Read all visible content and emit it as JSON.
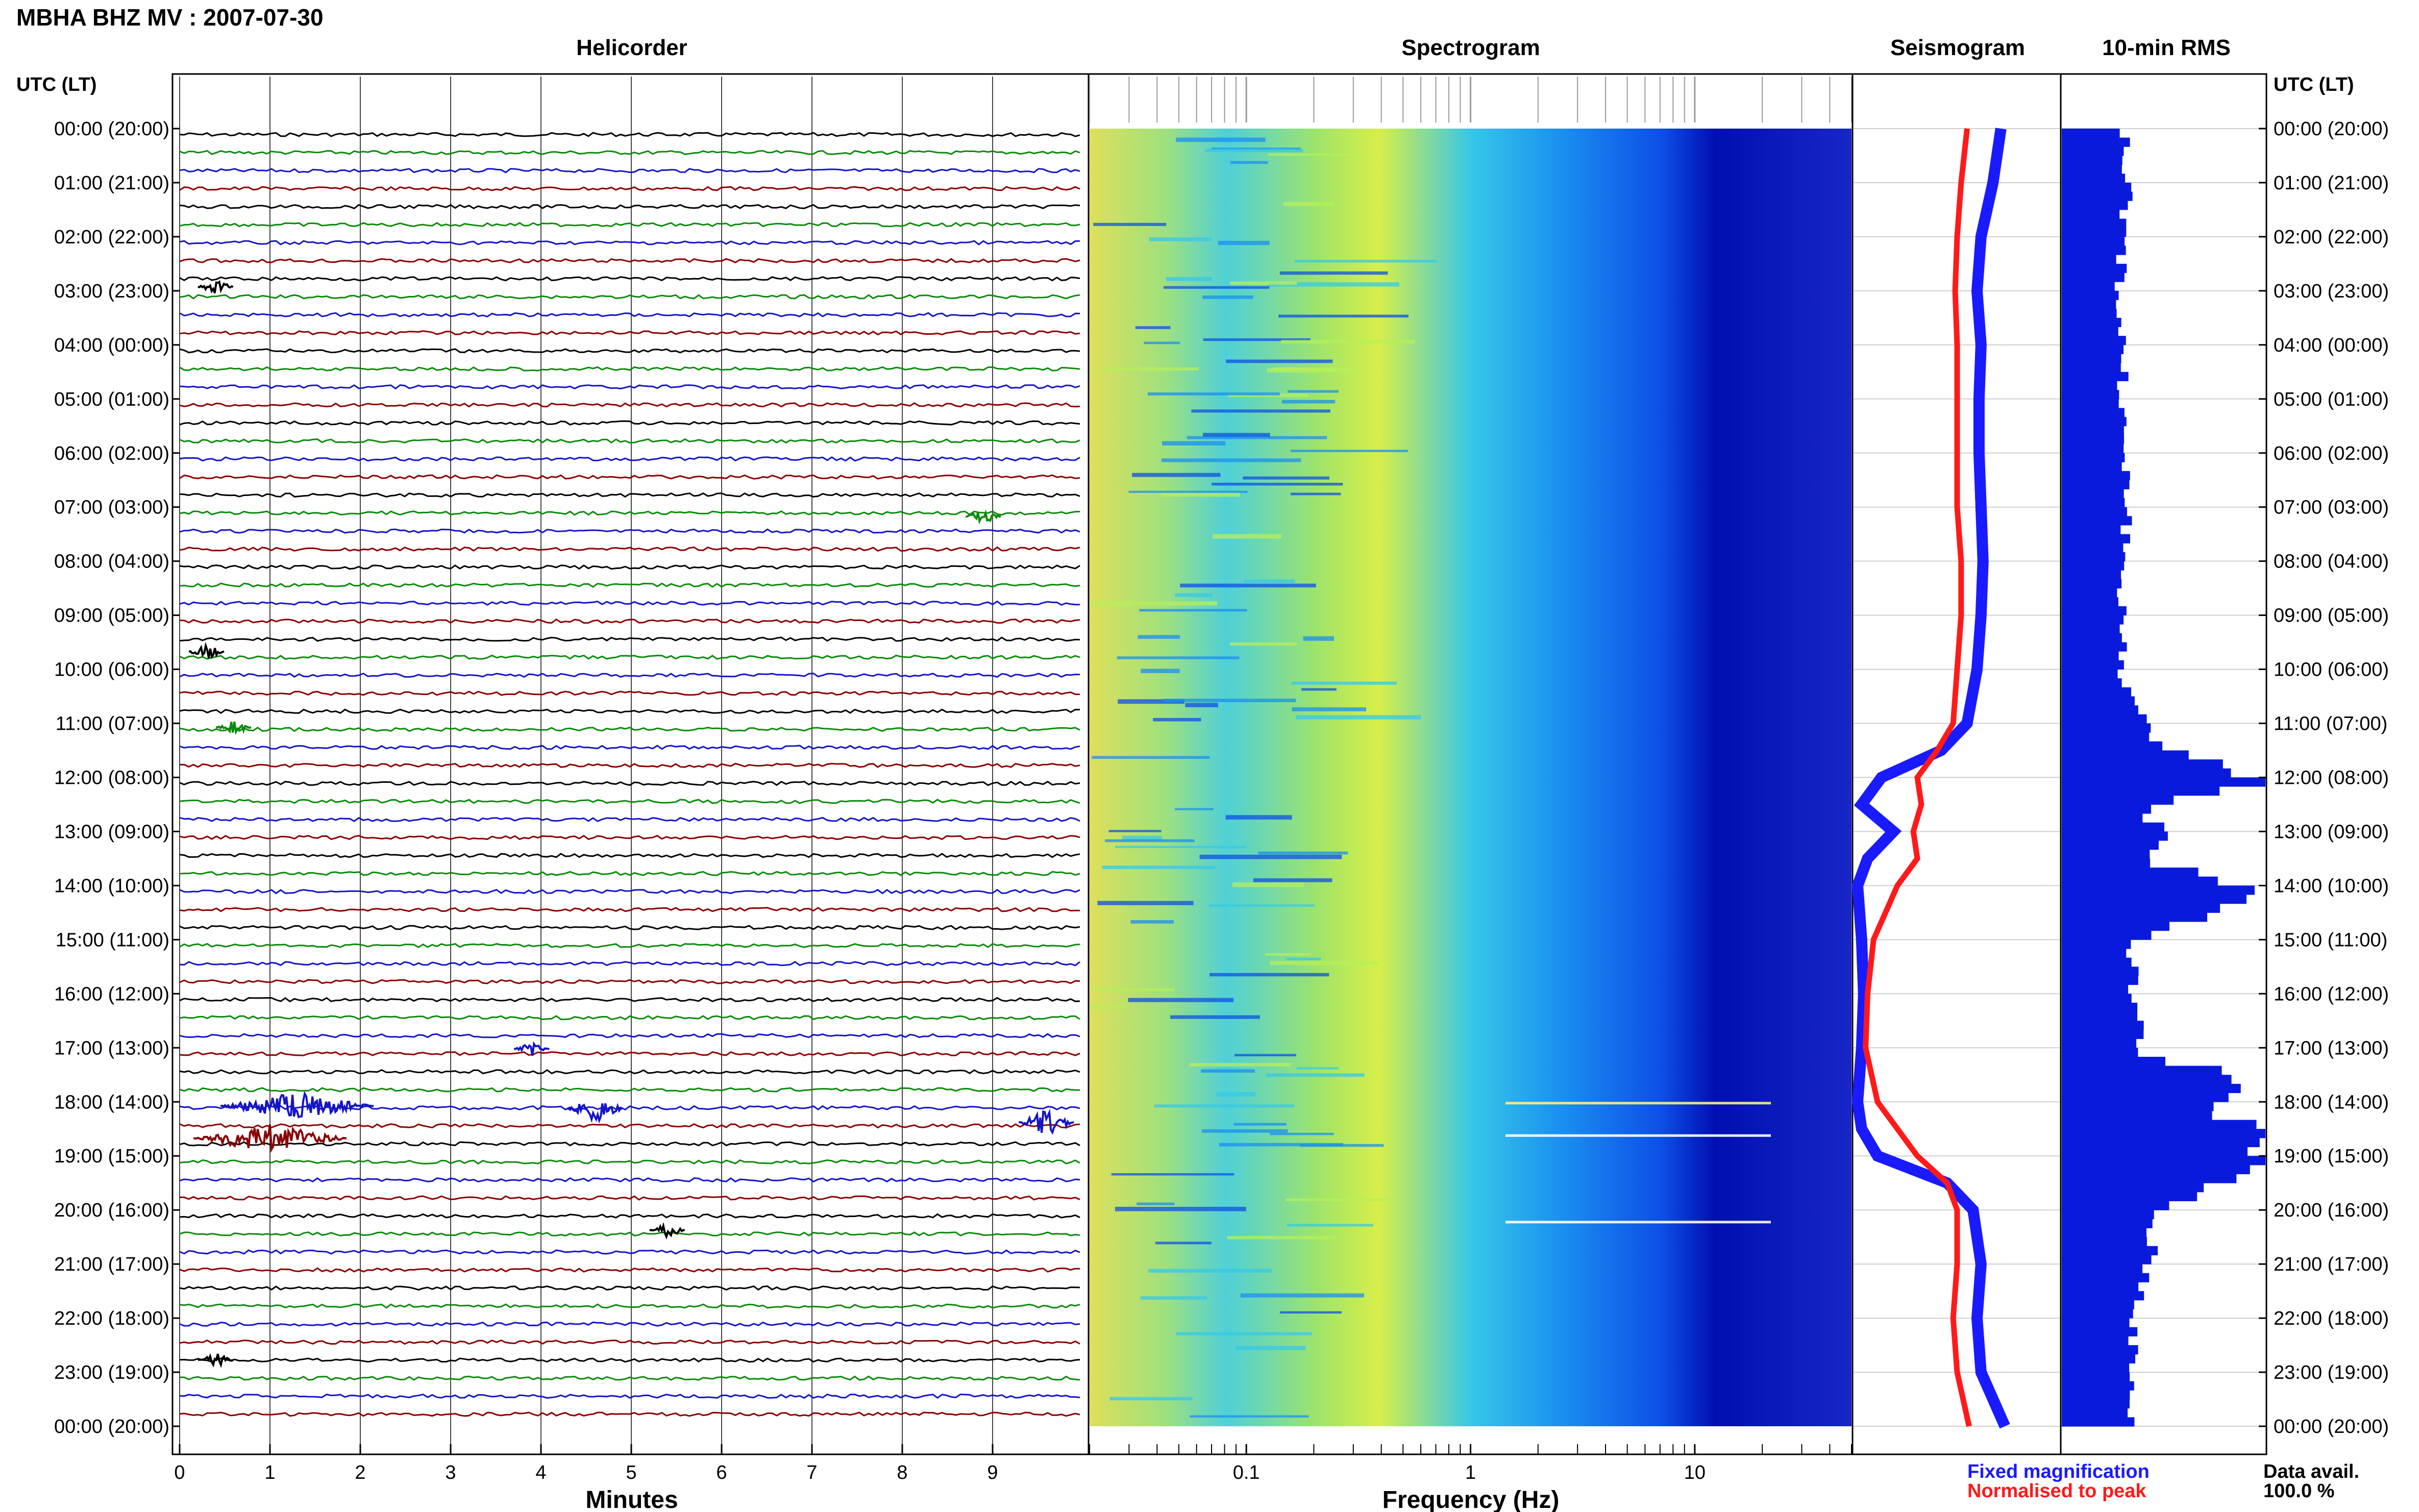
{
  "header": {
    "station_title": "MBHA BHZ MV : 2007-07-30",
    "helicorder_title": "Helicorder",
    "spectrogram_title": "Spectrogram",
    "seismogram_title": "Seismogram",
    "rms_title": "10-min RMS",
    "time_axis_label_left": "UTC (LT)",
    "time_axis_label_right": "UTC (LT)"
  },
  "footer": {
    "minutes_label": "Minutes",
    "frequency_label": "Frequency (Hz)",
    "legend_fixed": "Fixed magnification",
    "legend_normalised": "Normalised to peak",
    "data_avail_label": "Data avail.",
    "data_avail_value": "100.0 %"
  },
  "colors": {
    "trace_cycle": [
      "#000000",
      "#0b8a0b",
      "#1414c8",
      "#8b0000"
    ],
    "fixed_magnification": "#1a1aff",
    "normalised_to_peak": "#ff1a1a",
    "rms_bars": "#0a1adc",
    "spectrogram_colormap": [
      "#00008b",
      "#0000ff",
      "#0080ff",
      "#00e0ff",
      "#7fff7f",
      "#ffff00"
    ]
  },
  "chart_data": [
    {
      "type": "line",
      "name": "helicorder",
      "xlabel": "Minutes",
      "xlim": [
        0,
        10
      ],
      "x_ticks": [
        "0",
        "1",
        "2",
        "3",
        "4",
        "5",
        "6",
        "7",
        "8",
        "9"
      ],
      "row_count": 72,
      "row_interval_minutes": 20,
      "time_ticks": [
        "00:00 (20:00)",
        "01:00 (21:00)",
        "02:00 (22:00)",
        "03:00 (23:00)",
        "04:00 (00:00)",
        "05:00 (01:00)",
        "06:00 (02:00)",
        "07:00 (03:00)",
        "08:00 (04:00)",
        "09:00 (05:00)",
        "10:00 (06:00)",
        "11:00 (07:00)",
        "12:00 (08:00)",
        "13:00 (09:00)",
        "14:00 (10:00)",
        "15:00 (11:00)",
        "16:00 (12:00)",
        "17:00 (13:00)",
        "18:00 (14:00)",
        "19:00 (15:00)",
        "20:00 (16:00)",
        "21:00 (17:00)",
        "22:00 (18:00)",
        "23:00 (19:00)",
        "00:00 (20:00)"
      ],
      "events": [
        {
          "hour": 2.85,
          "minute": 0.4
        },
        {
          "hour": 7.1,
          "minute": 8.9
        },
        {
          "hour": 9.6,
          "minute": 0.3
        },
        {
          "hour": 11.0,
          "minute": 0.6
        },
        {
          "hour": 16.95,
          "minute": 3.9
        },
        {
          "hour": 18.0,
          "minute": 1.3
        },
        {
          "hour": 18.05,
          "minute": 4.6
        },
        {
          "hour": 18.3,
          "minute": 9.6
        },
        {
          "hour": 18.6,
          "minute": 1.0
        },
        {
          "hour": 20.3,
          "minute": 5.4
        },
        {
          "hour": 22.7,
          "minute": 0.4
        }
      ]
    },
    {
      "type": "heatmap",
      "name": "spectrogram",
      "xlabel": "Frequency (Hz)",
      "x_scale": "log",
      "xlim": [
        0.02,
        50
      ],
      "x_ticks": [
        "0.1",
        "1",
        "10"
      ],
      "ylim_hours": [
        0,
        24
      ],
      "notes": "log power; yellow-green at low frequency fading to deep blue above ~10 Hz"
    },
    {
      "type": "line",
      "name": "seismogram-spectrum-profile",
      "x_hours": [
        0,
        1,
        2,
        3,
        4,
        5,
        6,
        7,
        8,
        9,
        10,
        11,
        11.5,
        12,
        12.5,
        13,
        13.5,
        14,
        15,
        16,
        17,
        18,
        18.5,
        19,
        19.5,
        20,
        21,
        22,
        23,
        24
      ],
      "series": [
        {
          "name": "Fixed magnification",
          "values": [
            0.72,
            0.68,
            0.62,
            0.6,
            0.62,
            0.61,
            0.61,
            0.62,
            0.63,
            0.62,
            0.6,
            0.55,
            0.42,
            0.12,
            0.02,
            0.18,
            0.05,
            0.0,
            0.02,
            0.03,
            0.02,
            0.0,
            0.02,
            0.1,
            0.45,
            0.58,
            0.62,
            0.6,
            0.62,
            0.74
          ]
        },
        {
          "name": "Normalised to peak",
          "values": [
            0.55,
            0.52,
            0.5,
            0.49,
            0.5,
            0.5,
            0.5,
            0.5,
            0.52,
            0.52,
            0.5,
            0.48,
            0.4,
            0.3,
            0.32,
            0.28,
            0.3,
            0.2,
            0.08,
            0.05,
            0.04,
            0.1,
            0.2,
            0.3,
            0.45,
            0.5,
            0.5,
            0.48,
            0.5,
            0.56
          ]
        }
      ]
    },
    {
      "type": "bar",
      "name": "10-min-rms",
      "orientation": "horizontal",
      "x_hours": [
        0,
        1,
        2,
        3,
        4,
        5,
        6,
        7,
        8,
        9,
        10,
        11,
        11.5,
        12,
        12.5,
        13,
        13.5,
        14,
        15,
        16,
        17,
        17.5,
        18,
        18.5,
        19,
        19.5,
        20,
        21,
        22,
        23,
        24
      ],
      "values": [
        0.3,
        0.33,
        0.3,
        0.28,
        0.3,
        0.3,
        0.3,
        0.33,
        0.3,
        0.29,
        0.3,
        0.4,
        0.62,
        1.0,
        0.4,
        0.5,
        0.45,
        1.0,
        0.33,
        0.36,
        0.38,
        0.9,
        0.75,
        0.95,
        0.98,
        0.7,
        0.45,
        0.42,
        0.36,
        0.33,
        0.35
      ]
    }
  ]
}
